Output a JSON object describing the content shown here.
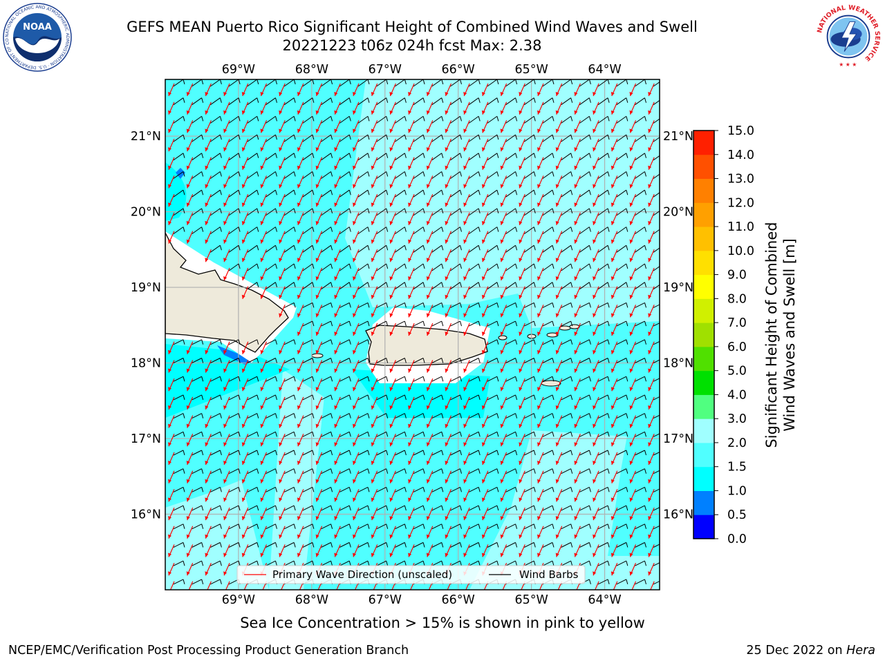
{
  "header": {
    "title_line1": "GEFS MEAN Puerto Rico Significant Height of Combined Wind Waves and Swell",
    "title_line2": "20221223 t06z 024h fcst   Max: 2.38"
  },
  "logos": {
    "noaa_center": "NOAA",
    "noaa_ring": "NATIONAL OCEANIC AND ATMOSPHERIC ADMINISTRATION · U.S. DEPARTMENT OF COMMERCE ·",
    "nws_ring": "NATIONAL WEATHER SERVICE"
  },
  "map": {
    "lon_labels": [
      "69°W",
      "68°W",
      "67°W",
      "66°W",
      "65°W",
      "64°W"
    ],
    "lat_labels": [
      "21°N",
      "20°N",
      "19°N",
      "18°N",
      "17°N",
      "16°N"
    ],
    "lon_range": [
      -70.0,
      -63.25
    ],
    "lat_range": [
      15.0,
      21.75
    ],
    "legend": {
      "primary_wave_direction": "Primary Wave Direction (unscaled)",
      "wind_barbs": "Wind Barbs"
    },
    "arrow_color": "#ff0000",
    "barb_color": "#000000",
    "land_color": "#eeeadb"
  },
  "colorbar": {
    "label_line1": "Significant Height of Combined",
    "label_line2": "Wind Waves and Swell [m]",
    "ticks": [
      "0.0",
      "0.5",
      "1.0",
      "1.5",
      "2.0",
      "3.0",
      "4.0",
      "5.0",
      "6.0",
      "7.0",
      "8.0",
      "9.0",
      "10.0",
      "11.0",
      "12.0",
      "13.0",
      "14.0",
      "15.0"
    ],
    "colors": [
      "#0000ff",
      "#0080ff",
      "#00ffff",
      "#50ffff",
      "#a0ffff",
      "#50ff80",
      "#00e000",
      "#50e000",
      "#a0e000",
      "#d0f000",
      "#ffff00",
      "#ffe000",
      "#ffc000",
      "#ffa000",
      "#ff8000",
      "#ff5000",
      "#ff2000"
    ]
  },
  "notes": {
    "sea_ice": "Sea Ice Concentration > 15% is shown in pink to yellow"
  },
  "footer": {
    "left": "NCEP/EMC/Verification Post Processing Product Generation Branch",
    "right_date": "25 Dec 2022 on ",
    "right_machine": "Hera"
  }
}
